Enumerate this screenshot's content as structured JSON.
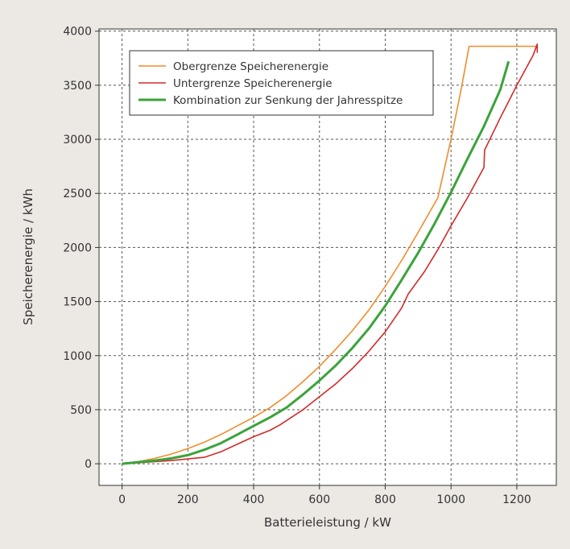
{
  "chart_data": {
    "type": "line",
    "title": "",
    "xlabel": "Batterieleistung / kW",
    "ylabel": "Speicherenergie / kWh",
    "xlim": [
      -70,
      1320
    ],
    "ylim": [
      -200,
      4020
    ],
    "xticks": [
      0,
      200,
      400,
      600,
      800,
      1000,
      1200
    ],
    "yticks": [
      0,
      500,
      1000,
      1500,
      2000,
      2500,
      3000,
      3500,
      4000
    ],
    "grid": true,
    "legend_position": "top-left",
    "series": [
      {
        "name": "Obergrenze Speicherenergie",
        "color": "#f08c2c",
        "x": [
          0,
          50,
          100,
          150,
          200,
          250,
          300,
          350,
          400,
          450,
          500,
          550,
          600,
          650,
          700,
          750,
          800,
          850,
          900,
          960,
          1000,
          1030,
          1055,
          1262
        ],
        "y": [
          0,
          20,
          50,
          90,
          140,
          200,
          270,
          350,
          430,
          520,
          630,
          760,
          900,
          1060,
          1230,
          1420,
          1640,
          1880,
          2140,
          2460,
          3000,
          3450,
          3860,
          3860
        ]
      },
      {
        "name": "Untergrenze Speicherenergie",
        "color": "#d12a2a",
        "x": [
          0,
          50,
          100,
          150,
          200,
          250,
          300,
          350,
          400,
          450,
          480,
          550,
          600,
          650,
          700,
          750,
          800,
          850,
          870,
          920,
          960,
          1000,
          1050,
          1100,
          1102,
          1150,
          1200,
          1250,
          1262,
          1262
        ],
        "y": [
          0,
          10,
          20,
          30,
          45,
          60,
          110,
          180,
          250,
          310,
          360,
          500,
          620,
          740,
          880,
          1040,
          1220,
          1440,
          1570,
          1780,
          1980,
          2200,
          2460,
          2740,
          2900,
          3200,
          3500,
          3780,
          3880,
          3800
        ]
      },
      {
        "name": "Kombination zur Senkung der Jahresspitze",
        "color": "#3aa33a",
        "x": [
          0,
          50,
          100,
          150,
          200,
          250,
          300,
          350,
          400,
          450,
          500,
          550,
          600,
          650,
          700,
          750,
          800,
          850,
          900,
          950,
          1000,
          1050,
          1100,
          1150,
          1175
        ],
        "y": [
          0,
          15,
          30,
          50,
          80,
          130,
          190,
          270,
          350,
          430,
          520,
          640,
          770,
          910,
          1070,
          1250,
          1460,
          1700,
          1950,
          2220,
          2510,
          2820,
          3120,
          3460,
          3720
        ]
      }
    ]
  }
}
